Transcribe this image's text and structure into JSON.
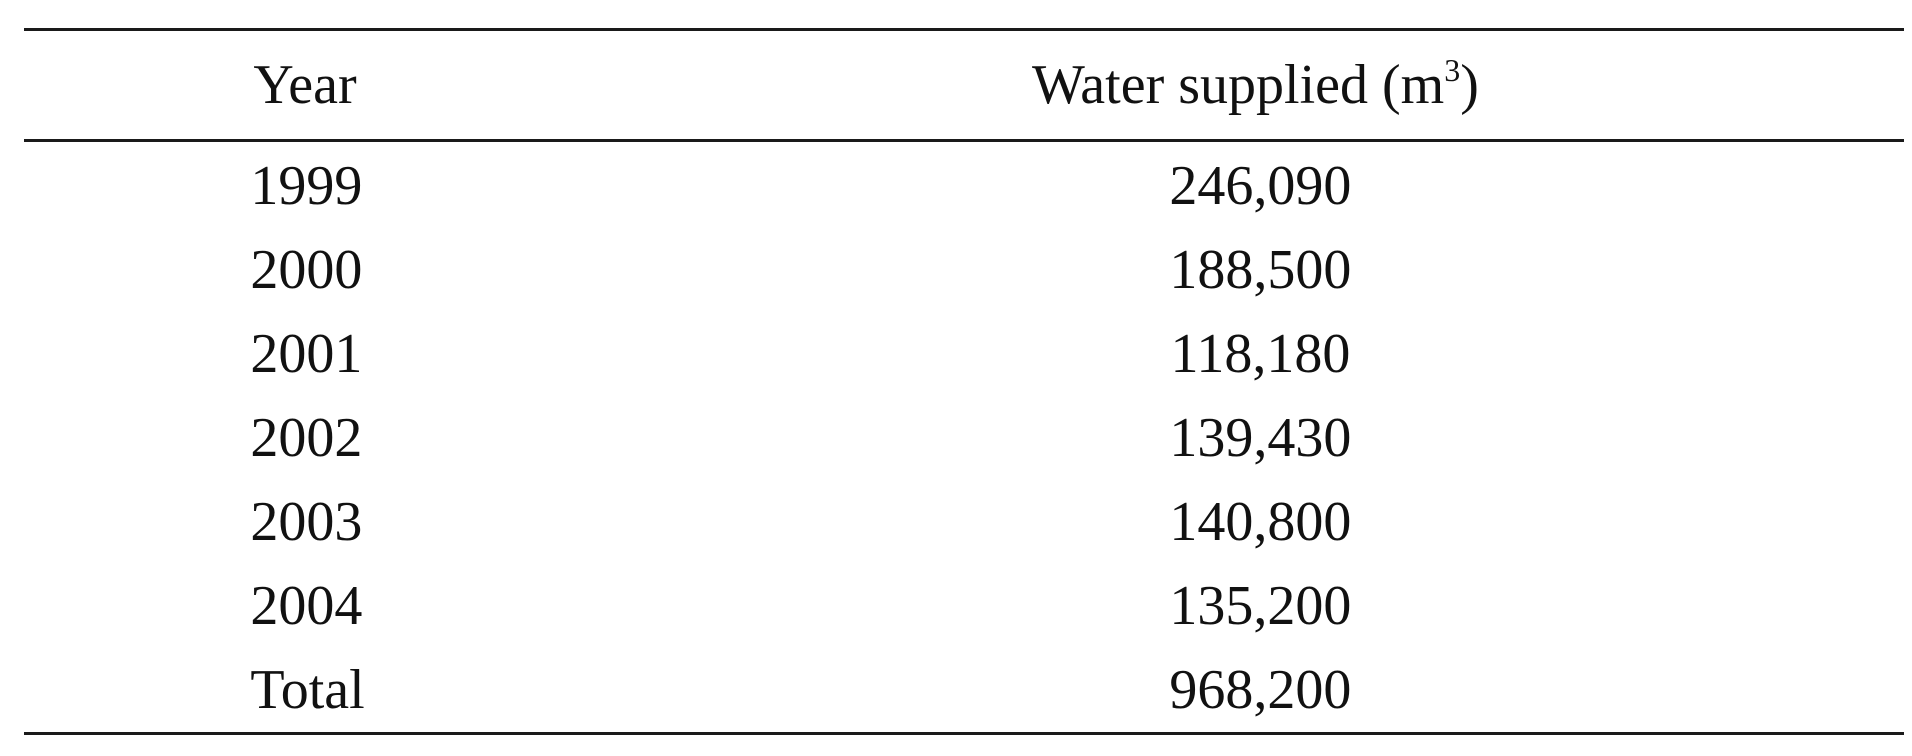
{
  "table": {
    "headers": {
      "year": "Year",
      "water_prefix": "Water supplied (m",
      "water_sup": "3",
      "water_suffix": ")"
    },
    "rows": [
      {
        "year": "1999",
        "water": "246,090"
      },
      {
        "year": "2000",
        "water": "188,500"
      },
      {
        "year": "2001",
        "water": "118,180"
      },
      {
        "year": "2002",
        "water": "139,430"
      },
      {
        "year": "2003",
        "water": "140,800"
      },
      {
        "year": "2004",
        "water": "135,200"
      },
      {
        "year": "Total",
        "water": "968,200"
      }
    ]
  }
}
